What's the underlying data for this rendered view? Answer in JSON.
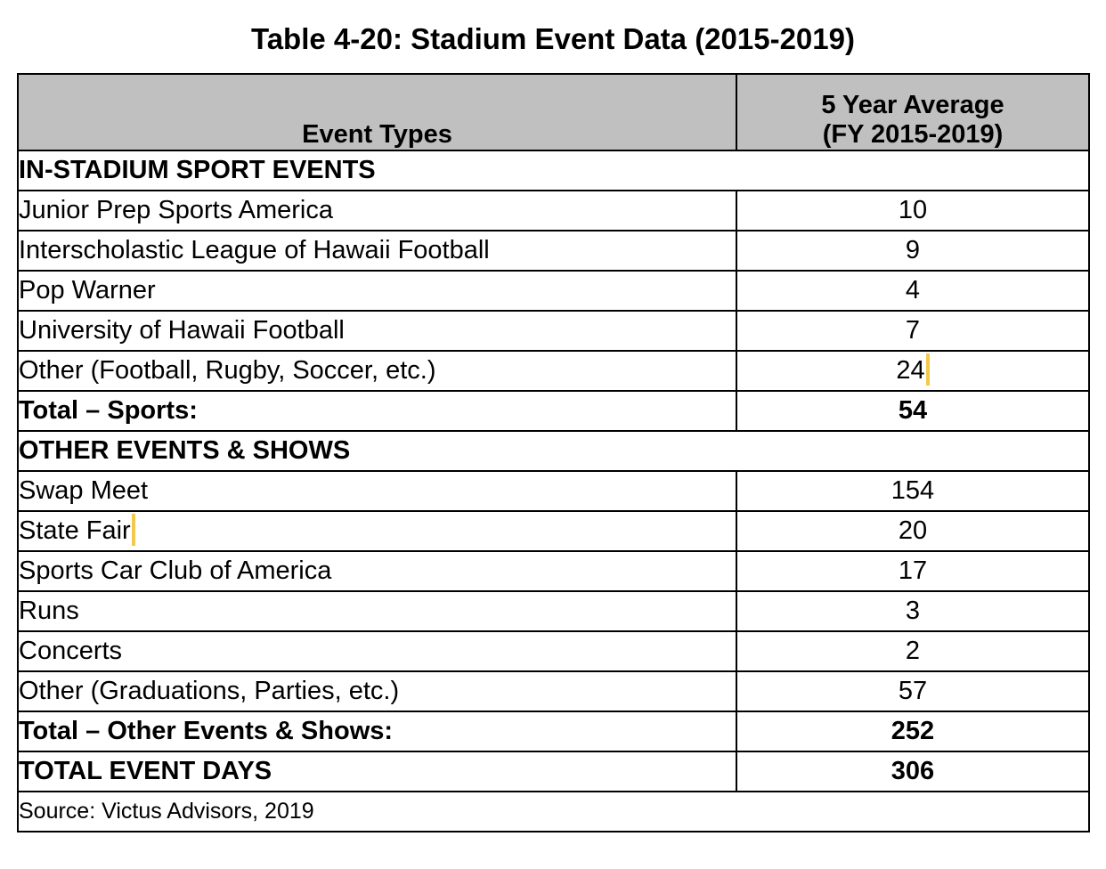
{
  "title": "Table 4-20: Stadium Event Data (2015-2019)",
  "header": {
    "col1": "Event Types",
    "col2_line1": "5 Year Average",
    "col2_line2": "(FY 2015-2019)"
  },
  "sections": [
    {
      "heading": "IN-STADIUM SPORT EVENTS",
      "rows": [
        {
          "label": "Junior Prep Sports America",
          "value": "10"
        },
        {
          "label": "Interscholastic League of Hawaii Football",
          "value": "9"
        },
        {
          "label": "Pop Warner",
          "value": "4"
        },
        {
          "label": "University of Hawaii Football",
          "value": "7"
        },
        {
          "label": "Other (Football, Rugby, Soccer, etc.)",
          "value": "24"
        }
      ],
      "total": {
        "label": "Total – Sports:",
        "value": "54"
      }
    },
    {
      "heading": "OTHER EVENTS & SHOWS",
      "rows": [
        {
          "label": "Swap Meet",
          "value": "154"
        },
        {
          "label": "State Fair",
          "value": "20"
        },
        {
          "label": "Sports Car Club of America",
          "value": "17"
        },
        {
          "label": "Runs",
          "value": "3"
        },
        {
          "label": "Concerts",
          "value": "2"
        },
        {
          "label": "Other (Graduations, Parties, etc.)",
          "value": "57"
        }
      ],
      "total": {
        "label": "Total – Other Events & Shows:",
        "value": "252"
      }
    }
  ],
  "grand_total": {
    "label": "TOTAL EVENT DAYS",
    "value": "306"
  },
  "source": "Source: Victus Advisors, 2019",
  "colors": {
    "header_bg": "#c0c0c0",
    "highlight": "#f2c94c"
  }
}
